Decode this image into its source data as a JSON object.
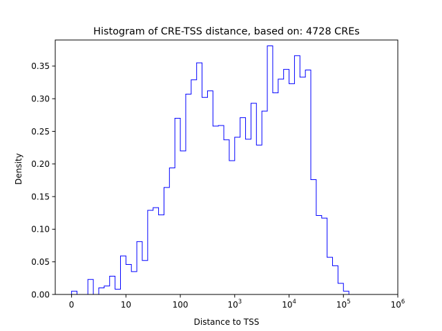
{
  "chart_data": {
    "type": "histogram",
    "title": "Histogram of CRE-TSS distance, based on: 4728 CREs",
    "xlabel": "Distance to TSS",
    "ylabel": "Density",
    "x_scale": "log10(distance + 1)",
    "xlim": [
      -0.3,
      6.0
    ],
    "ylim": [
      0.0,
      0.39
    ],
    "x_ticks": [
      {
        "value": 0,
        "base": "0",
        "exp": ""
      },
      {
        "value": 1,
        "base": "10",
        "exp": ""
      },
      {
        "value": 2,
        "base": "100",
        "exp": ""
      },
      {
        "value": 3,
        "base": "10",
        "exp": "3"
      },
      {
        "value": 4,
        "base": "10",
        "exp": "4"
      },
      {
        "value": 5,
        "base": "10",
        "exp": "5"
      },
      {
        "value": 6,
        "base": "10",
        "exp": "6"
      }
    ],
    "y_ticks": [
      "0.00",
      "0.05",
      "0.10",
      "0.15",
      "0.20",
      "0.25",
      "0.30",
      "0.35"
    ],
    "grid": false,
    "legend": null,
    "color": "#0000ff",
    "bin_width": 0.1,
    "bin_start": 0.0,
    "values": [
      0.005,
      0.0,
      0.0,
      0.023,
      0.0,
      0.01,
      0.013,
      0.028,
      0.008,
      0.059,
      0.046,
      0.035,
      0.081,
      0.052,
      0.129,
      0.133,
      0.122,
      0.164,
      0.194,
      0.27,
      0.22,
      0.307,
      0.329,
      0.355,
      0.302,
      0.312,
      0.258,
      0.259,
      0.237,
      0.205,
      0.241,
      0.271,
      0.238,
      0.293,
      0.229,
      0.281,
      0.381,
      0.309,
      0.33,
      0.345,
      0.323,
      0.366,
      0.333,
      0.344,
      0.176,
      0.121,
      0.117,
      0.057,
      0.044,
      0.017,
      0.005
    ]
  }
}
